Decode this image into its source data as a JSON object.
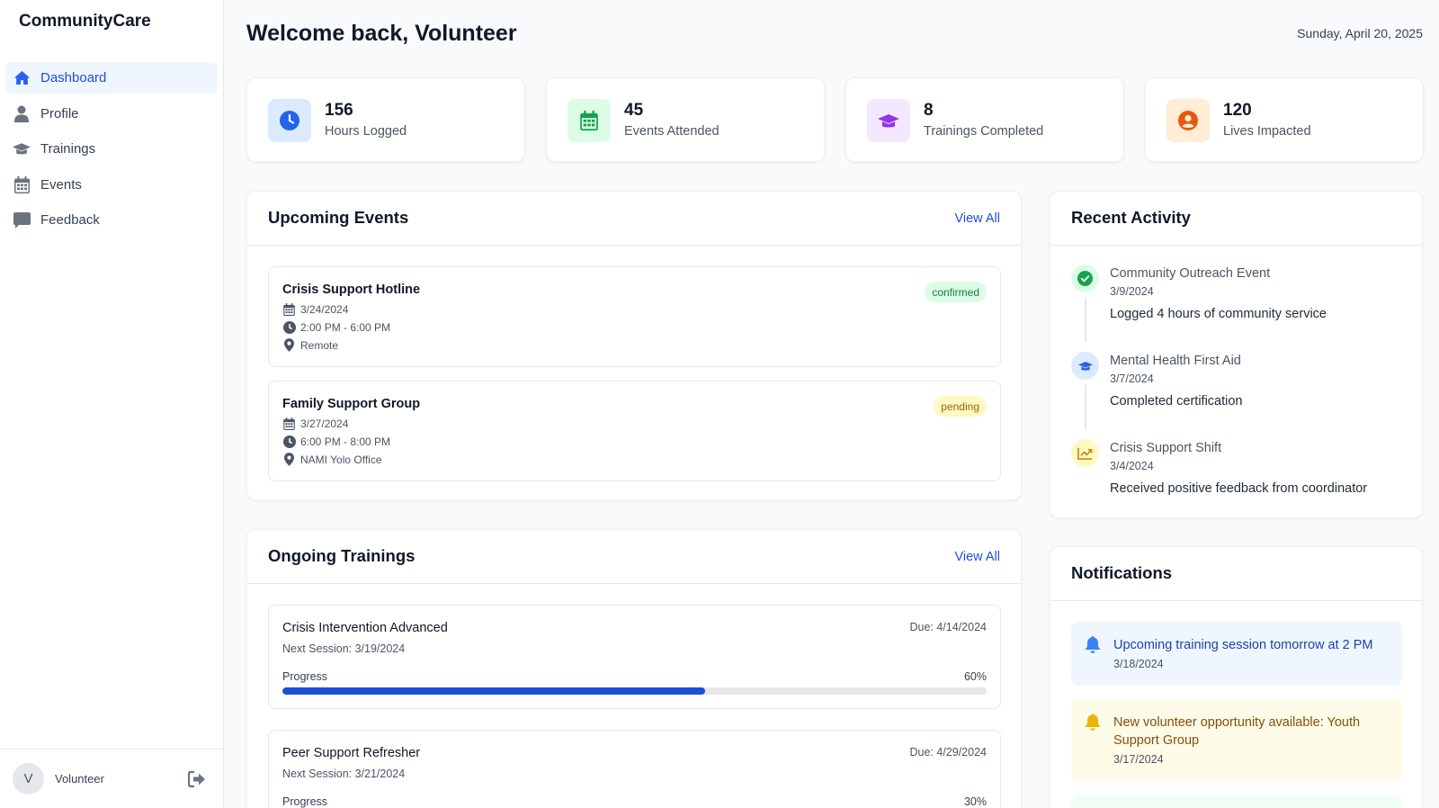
{
  "app": {
    "brand": "CommunityCare"
  },
  "sidebar": {
    "items": [
      {
        "label": "Dashboard",
        "icon": "home-icon",
        "active": true
      },
      {
        "label": "Profile",
        "icon": "user-icon"
      },
      {
        "label": "Trainings",
        "icon": "graduation-cap-icon"
      },
      {
        "label": "Events",
        "icon": "calendar-icon"
      },
      {
        "label": "Feedback",
        "icon": "comment-icon"
      }
    ],
    "user": {
      "initial": "V",
      "name": "Volunteer"
    }
  },
  "header": {
    "title": "Welcome back, Volunteer",
    "date": "Sunday, April 20, 2025"
  },
  "stats": [
    {
      "value": "156",
      "label": "Hours Logged",
      "icon": "clock-icon",
      "color": "#2563eb",
      "bg": "#dbeafe"
    },
    {
      "value": "45",
      "label": "Events Attended",
      "icon": "calendar-icon",
      "color": "#16a34a",
      "bg": "#dcfce7"
    },
    {
      "value": "8",
      "label": "Trainings Completed",
      "icon": "graduation-cap-icon",
      "color": "#9333ea",
      "bg": "#f3e8ff"
    },
    {
      "value": "120",
      "label": "Lives Impacted",
      "icon": "user-circle-icon",
      "color": "#ea580c",
      "bg": "#ffedd5"
    }
  ],
  "upcoming_events": {
    "title": "Upcoming Events",
    "view_all": "View All",
    "items": [
      {
        "name": "Crisis Support Hotline",
        "date": "3/24/2024",
        "time": "2:00 PM - 6:00 PM",
        "location": "Remote",
        "status": "confirmed"
      },
      {
        "name": "Family Support Group",
        "date": "3/27/2024",
        "time": "6:00 PM - 8:00 PM",
        "location": "NAMI Yolo Office",
        "status": "pending"
      }
    ]
  },
  "ongoing_trainings": {
    "title": "Ongoing Trainings",
    "view_all": "View All",
    "progress_label": "Progress",
    "items": [
      {
        "name": "Crisis Intervention Advanced",
        "next": "Next Session: 3/19/2024",
        "due": "Due: 4/14/2024",
        "progress_text": "60%",
        "progress": 60
      },
      {
        "name": "Peer Support Refresher",
        "next": "Next Session: 3/21/2024",
        "due": "Due: 4/29/2024",
        "progress_text": "30%",
        "progress": 30
      }
    ]
  },
  "recent_activity": {
    "title": "Recent Activity",
    "items": [
      {
        "title": "Community Outreach Event",
        "date": "3/9/2024",
        "desc": "Logged 4 hours of community service",
        "icon": "check-circle-icon"
      },
      {
        "title": "Mental Health First Aid",
        "date": "3/7/2024",
        "desc": "Completed certification",
        "icon": "graduation-cap-icon"
      },
      {
        "title": "Crisis Support Shift",
        "date": "3/4/2024",
        "desc": "Received positive feedback from coordinator",
        "icon": "chart-line-icon"
      }
    ]
  },
  "notifications": {
    "title": "Notifications",
    "items": [
      {
        "text": "Upcoming training session tomorrow at 2 PM",
        "date": "3/18/2024",
        "icon": "bell-icon"
      },
      {
        "text": "New volunteer opportunity available: Youth Support Group",
        "date": "3/17/2024",
        "icon": "bell-icon"
      }
    ]
  }
}
